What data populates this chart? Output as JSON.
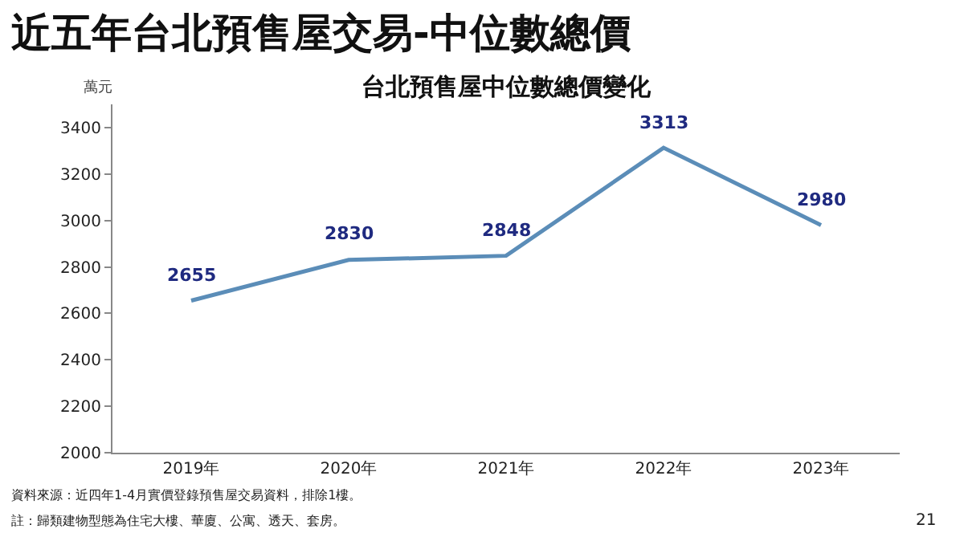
{
  "chart_data": {
    "type": "line",
    "title": "近五年台北預售屋交易-中位數總價",
    "subtitle": "台北預售屋中位數總價變化",
    "ylabel": "萬元",
    "categories": [
      "2019年",
      "2020年",
      "2021年",
      "2022年",
      "2023年"
    ],
    "series": [
      {
        "color": "#5b8db8",
        "values": [
          2655,
          2830,
          2848,
          3313,
          2980
        ]
      }
    ],
    "ylim": [
      2000,
      3500
    ],
    "yticks": [
      2000,
      2200,
      2400,
      2600,
      2800,
      3000,
      3200,
      3400
    ],
    "data_labels": true,
    "legend": false,
    "marker": "none",
    "line_style": "solid",
    "annotations": [
      "資料來源：近四年1-4月實價登錄預售屋交易資料，排除1樓。",
      "註：歸類建物型態為住宅大樓、華廈、公寓、透天、套房。",
      "21"
    ]
  }
}
